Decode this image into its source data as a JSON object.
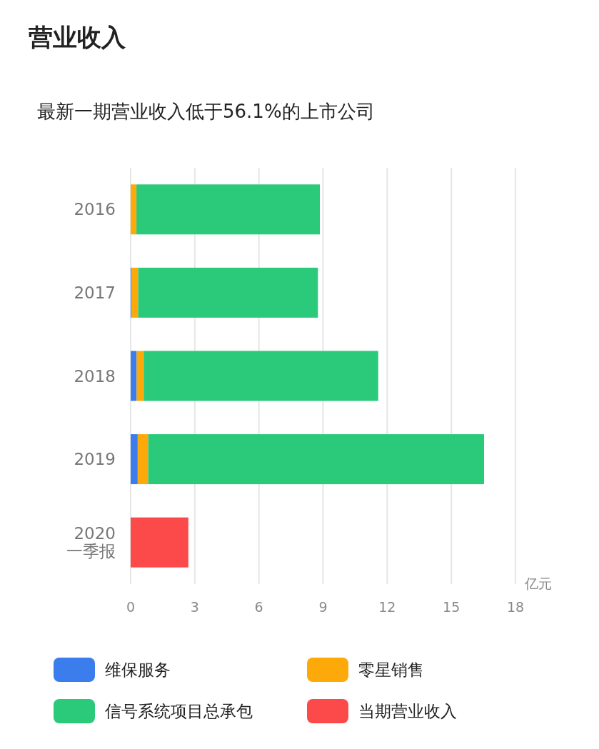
{
  "chart_data": {
    "type": "bar",
    "orientation": "horizontal",
    "stacked": true,
    "title": "营业收入",
    "subtitle": "最新一期营业收入低于56.1%的上市公司",
    "xlabel": "亿元",
    "categories": [
      "2016",
      "2017",
      "2018",
      "2019",
      "2020\n一季报"
    ],
    "series": [
      {
        "name": "维保服务",
        "color": "#3b7ded",
        "values": [
          0,
          0.04,
          0.28,
          0.33,
          null
        ]
      },
      {
        "name": "零星销售",
        "color": "#fda90a",
        "values": [
          0.27,
          0.31,
          0.33,
          0.49,
          null
        ]
      },
      {
        "name": "信号系统项目总承包",
        "color": "#2bc97a",
        "values": [
          8.58,
          8.41,
          10.97,
          15.71,
          null
        ]
      },
      {
        "name": "当期营业收入",
        "color": "#fc4a4a",
        "values": [
          null,
          null,
          null,
          null,
          2.7
        ]
      }
    ],
    "xlim": [
      0,
      18
    ],
    "xticks": [
      0,
      3,
      6,
      9,
      12,
      15,
      18
    ],
    "grid": "x",
    "legend": "bottom"
  }
}
